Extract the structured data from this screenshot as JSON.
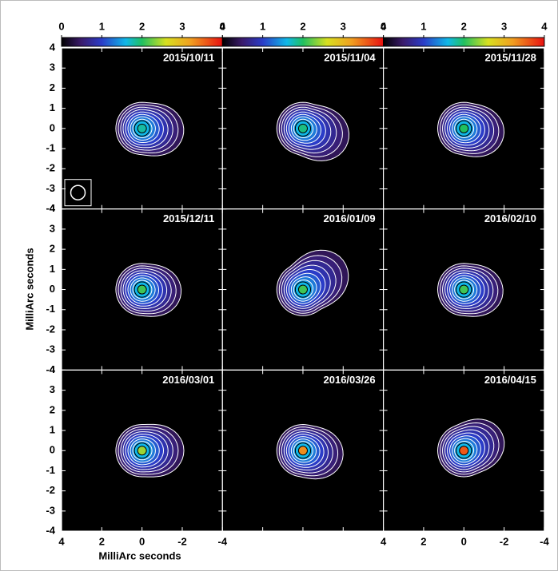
{
  "chart_data": {
    "type": "image-grid",
    "xlabel": "MilliArc seconds",
    "ylabel": "MilliArc seconds",
    "xlim": [
      4,
      -4
    ],
    "ylim": [
      -4,
      4
    ],
    "xticks": [
      4,
      2,
      0,
      -2,
      -4
    ],
    "yticks": [
      -4,
      -3,
      -2,
      -1,
      0,
      1,
      2,
      3,
      4
    ],
    "colorbar": {
      "lim": [
        0,
        4
      ],
      "ticks": [
        0,
        1,
        2,
        3,
        4
      ]
    },
    "panels": [
      {
        "title": "2015/10/11",
        "peak": 1.8
      },
      {
        "title": "2015/11/04",
        "peak": 1.9
      },
      {
        "title": "2015/11/28",
        "peak": 2.0
      },
      {
        "title": "2015/12/11",
        "peak": 2.1
      },
      {
        "title": "2016/01/09",
        "peak": 2.1
      },
      {
        "title": "2016/02/10",
        "peak": 2.1
      },
      {
        "title": "2016/03/01",
        "peak": 2.4
      },
      {
        "title": "2016/03/26",
        "peak": 3.3
      },
      {
        "title": "2016/04/15",
        "peak": 3.6
      }
    ]
  }
}
